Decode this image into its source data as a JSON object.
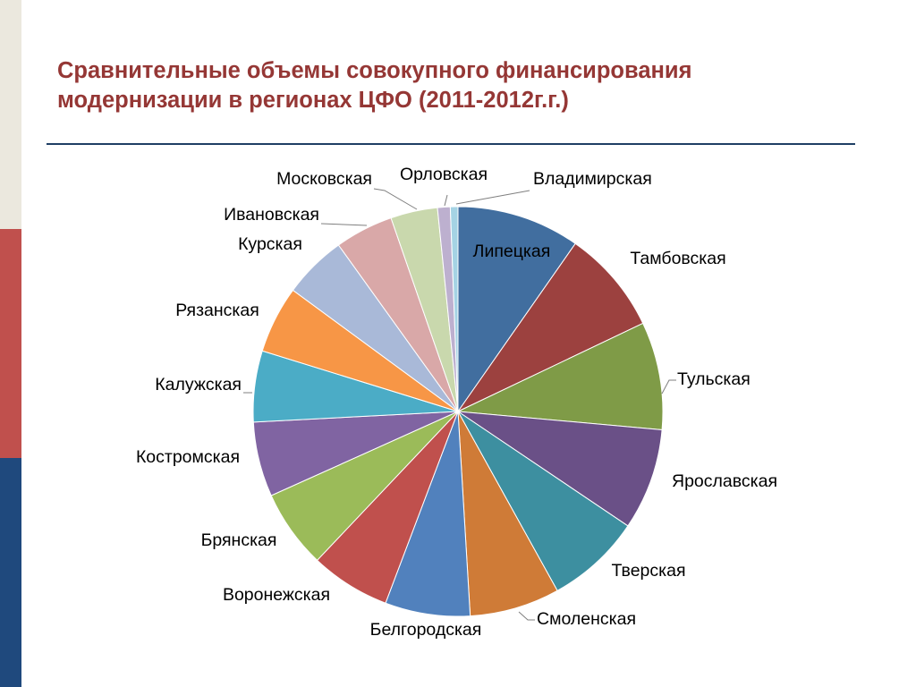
{
  "title": "Сравнительные объемы совокупного финансирования модернизации в регионах ЦФО (2011-2012г.г.)",
  "colors": {
    "left_stripe": [
      "#ebe8de",
      "#c0504d",
      "#1f497d"
    ],
    "title": "#953735",
    "rule": "#1f3f64"
  },
  "chart_data": {
    "type": "pie",
    "start": "12 o'clock",
    "direction": "clockwise",
    "legend": "none",
    "title": "",
    "slices": [
      {
        "label": "Липецкая",
        "value": 9.7,
        "color": "#416e9f",
        "label_color": "#ffffff"
      },
      {
        "label": "Тамбовская",
        "value": 8.2,
        "color": "#9c413f",
        "label_color": "#000000"
      },
      {
        "label": "Тульская",
        "value": 8.5,
        "color": "#7f9b47",
        "label_color": "#000000"
      },
      {
        "label": "Ярославская",
        "value": 8.0,
        "color": "#6a5087",
        "label_color": "#000000"
      },
      {
        "label": "Тверская",
        "value": 7.5,
        "color": "#3d8fa0",
        "label_color": "#000000"
      },
      {
        "label": "Смоленская",
        "value": 7.1,
        "color": "#cf7b37",
        "label_color": "#000000"
      },
      {
        "label": "Белгородская",
        "value": 6.7,
        "color": "#5181bd",
        "label_color": "#000000"
      },
      {
        "label": "Воронежская",
        "value": 6.3,
        "color": "#c0504d",
        "label_color": "#000000"
      },
      {
        "label": "Брянская",
        "value": 6.2,
        "color": "#9bbb59",
        "label_color": "#000000"
      },
      {
        "label": "Костромская",
        "value": 5.9,
        "color": "#8064a2",
        "label_color": "#000000"
      },
      {
        "label": "Калужская",
        "value": 5.6,
        "color": "#4bacc6",
        "label_color": "#000000"
      },
      {
        "label": "Рязанская",
        "value": 5.3,
        "color": "#f79646",
        "label_color": "#000000"
      },
      {
        "label": "Курская",
        "value": 5.0,
        "color": "#a9b9d8",
        "label_color": "#000000"
      },
      {
        "label": "Ивановская",
        "value": 4.6,
        "color": "#d9a8a8",
        "label_color": "#000000"
      },
      {
        "label": "Московская",
        "value": 3.7,
        "color": "#c9d8ad",
        "label_color": "#000000"
      },
      {
        "label": "Орловская",
        "value": 1.0,
        "color": "#bdb0cf",
        "label_color": "#000000"
      },
      {
        "label": "Владимирская",
        "value": 0.6,
        "color": "#a5d3e4",
        "label_color": "#000000"
      }
    ]
  }
}
